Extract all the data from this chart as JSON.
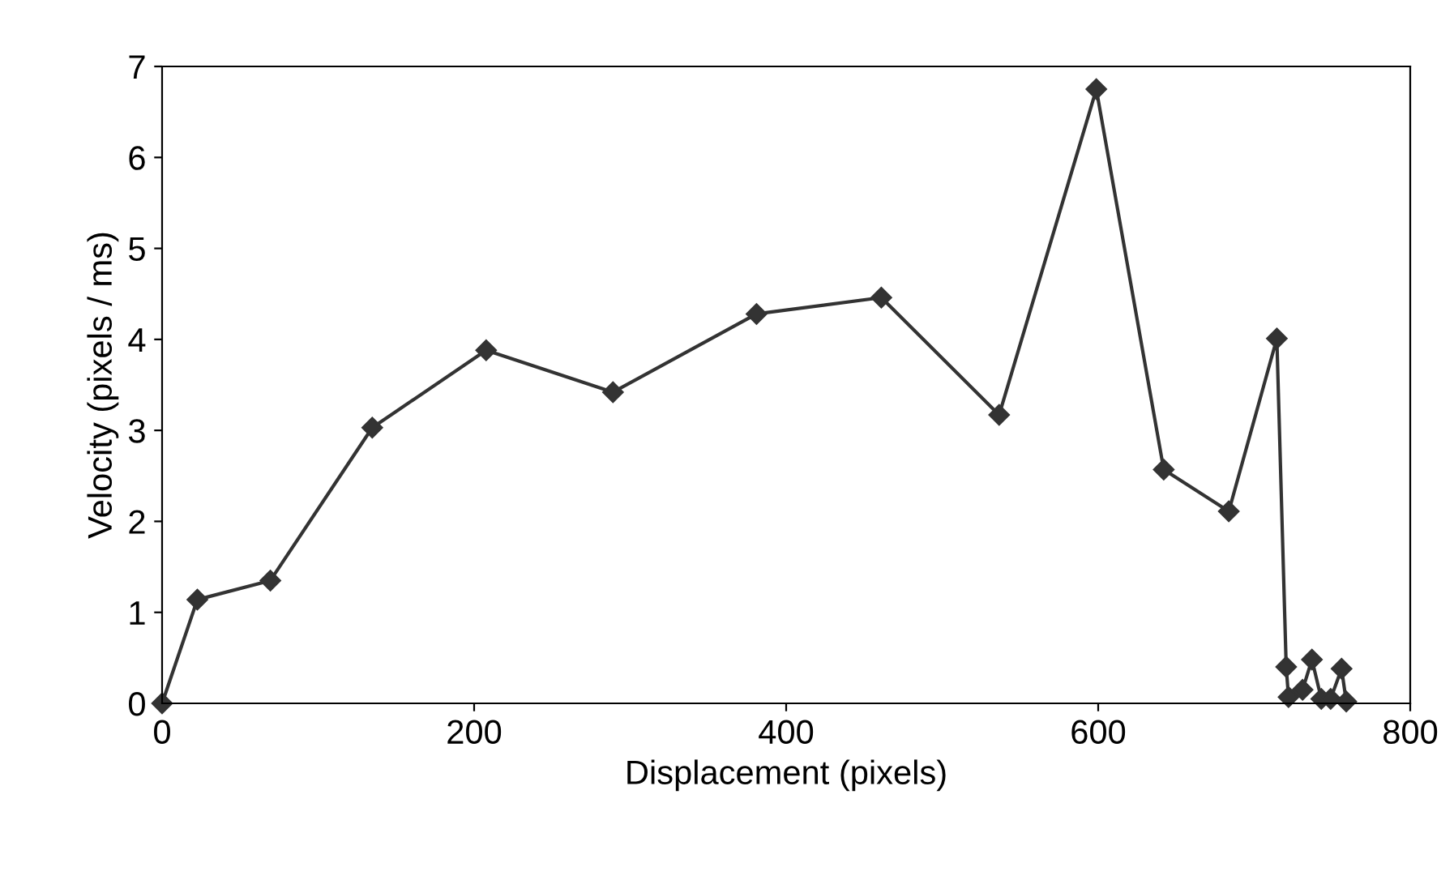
{
  "chart_data": {
    "type": "line",
    "xlabel": "Displacement (pixels)",
    "ylabel": "Velocity (pixels / ms)",
    "xlim": [
      0,
      800
    ],
    "xticks": [
      0,
      200,
      400,
      600,
      800
    ],
    "ylim": [
      0,
      7
    ],
    "yticks": [
      0,
      1,
      2,
      3,
      4,
      5,
      6,
      7
    ],
    "grid": false,
    "marker": "diamond",
    "line_style": "solid",
    "series": [
      {
        "color": "#333333",
        "x": [
          0,
          22.6,
          69.4,
          134.7,
          207.7,
          289,
          381,
          461,
          536.5,
          598.8,
          642,
          683.7,
          714.5,
          720.5,
          722,
          731,
          737,
          743,
          749,
          756,
          759
        ],
        "values": [
          0,
          1.14,
          1.35,
          3.03,
          3.88,
          3.42,
          4.28,
          4.46,
          3.17,
          6.75,
          2.57,
          2.11,
          4.01,
          0.4,
          0.07,
          0.15,
          0.48,
          0.05,
          0.05,
          0.38,
          0.02
        ]
      }
    ]
  }
}
